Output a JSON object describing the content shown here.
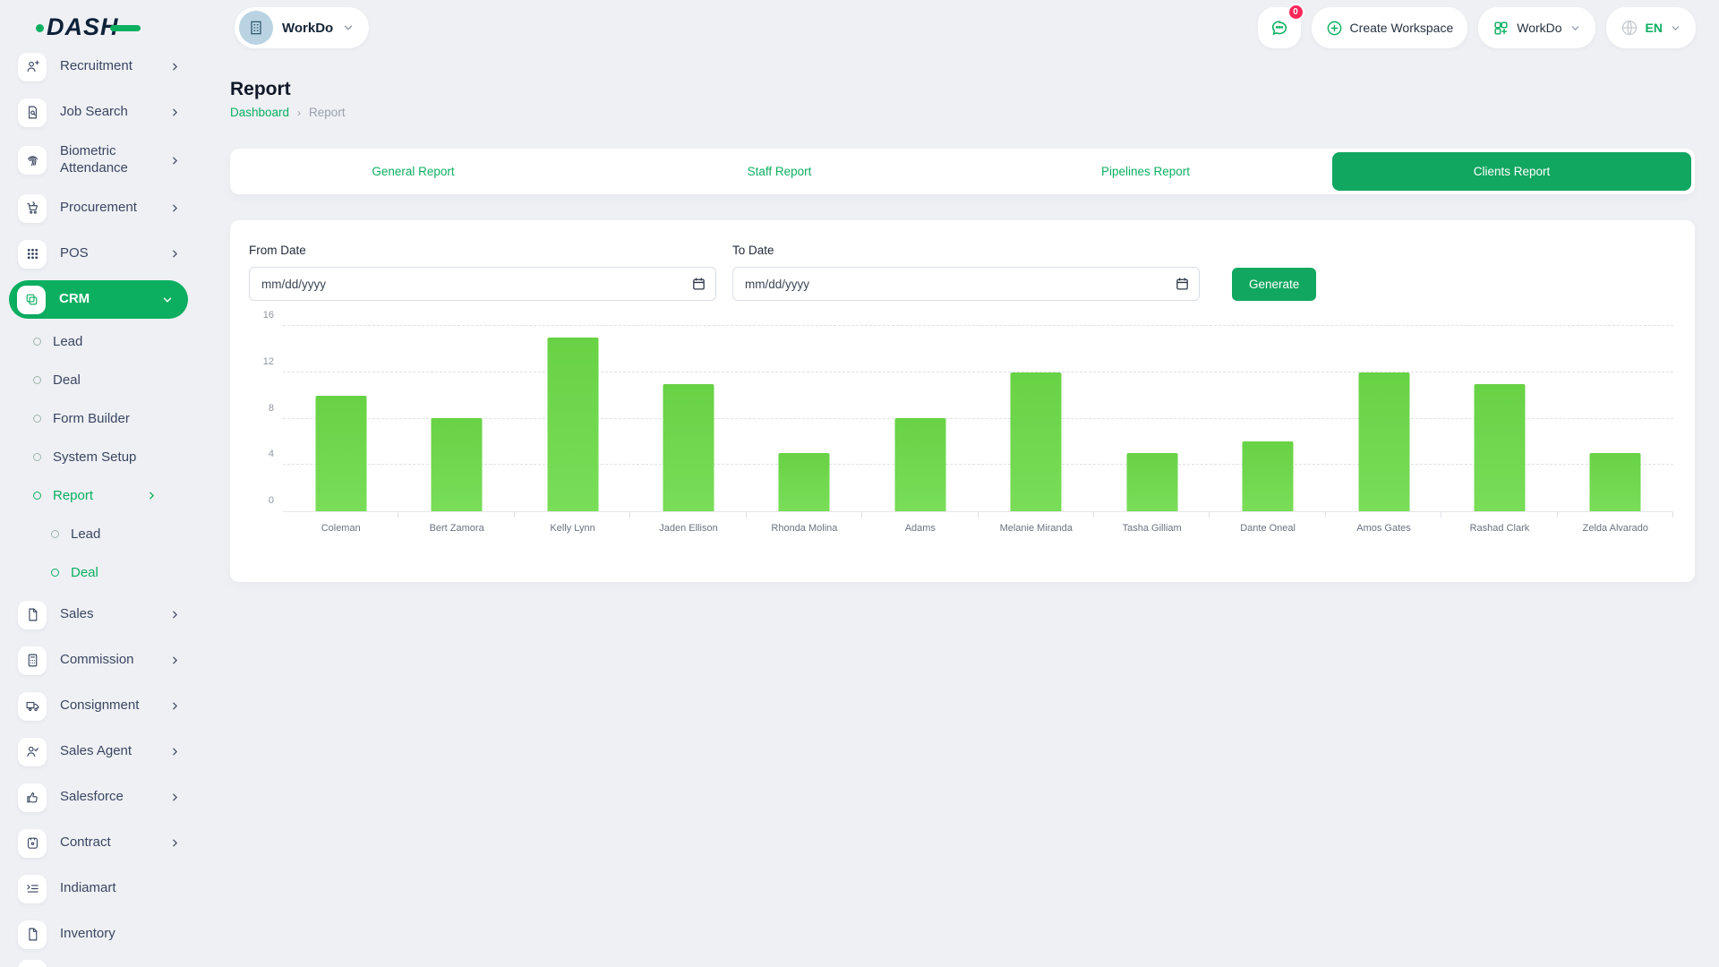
{
  "colors": {
    "accent_green": "#0caf60",
    "tab_active_green": "#12a760",
    "bar_green": "#6fd943",
    "badge_pink": "#fc275a",
    "avatar_blue": "#b9d3e2"
  },
  "header": {
    "logo_text": "DASH",
    "workspace_name": "WorkDo",
    "messages_badge": "0",
    "create_workspace_label": "Create Workspace",
    "workspace_switcher_label": "WorkDo",
    "language_label": "EN"
  },
  "sidebar": {
    "items": [
      {
        "label": "Recruitment",
        "icon": "user-plus",
        "chevron": true
      },
      {
        "label": "Job Search",
        "icon": "doc-search",
        "chevron": true
      },
      {
        "label": "Biometric Attendance",
        "icon": "fingerprint",
        "chevron": true,
        "tall": true
      },
      {
        "label": "Procurement",
        "icon": "cart",
        "chevron": true
      },
      {
        "label": "POS",
        "icon": "grid-dots",
        "chevron": true
      },
      {
        "label": "CRM",
        "icon": "copy",
        "chevron": true,
        "active": true,
        "expanded": true,
        "children": [
          {
            "label": "Lead"
          },
          {
            "label": "Deal"
          },
          {
            "label": "Form Builder"
          },
          {
            "label": "System Setup"
          },
          {
            "label": "Report",
            "green": true,
            "chevron": true,
            "children": [
              {
                "label": "Lead"
              },
              {
                "label": "Deal",
                "green": true
              }
            ]
          }
        ]
      },
      {
        "label": "Sales",
        "icon": "doc",
        "chevron": true
      },
      {
        "label": "Commission",
        "icon": "calculator",
        "chevron": true
      },
      {
        "label": "Consignment",
        "icon": "truck",
        "chevron": true
      },
      {
        "label": "Sales Agent",
        "icon": "user-check",
        "chevron": true
      },
      {
        "label": "Salesforce",
        "icon": "thumb",
        "chevron": true
      },
      {
        "label": "Contract",
        "icon": "doc-badge",
        "chevron": true
      },
      {
        "label": "Indiamart",
        "icon": "list-arrow",
        "chevron": false
      },
      {
        "label": "Inventory",
        "icon": "doc",
        "chevron": false
      }
    ]
  },
  "page": {
    "title": "Report",
    "breadcrumb": [
      "Dashboard",
      "Report"
    ]
  },
  "tabs": [
    {
      "label": "General Report",
      "active": false
    },
    {
      "label": "Staff Report",
      "active": false
    },
    {
      "label": "Pipelines Report",
      "active": false
    },
    {
      "label": "Clients Report",
      "active": true
    }
  ],
  "filters": {
    "from_label": "From Date",
    "to_label": "To Date",
    "date_placeholder": "mm/dd/yyyy",
    "from_value": "",
    "to_value": "",
    "generate_label": "Generate"
  },
  "chart_data": {
    "type": "bar",
    "title": "",
    "xlabel": "",
    "ylabel": "",
    "categories": [
      "Coleman",
      "Bert Zamora",
      "Kelly Lynn",
      "Jaden Ellison",
      "Rhonda Molina",
      "Adams",
      "Melanie Miranda",
      "Tasha Gilliam",
      "Dante Oneal",
      "Amos Gates",
      "Rashad Clark",
      "Zelda Alvarado"
    ],
    "values": [
      10,
      8,
      15,
      11,
      5,
      8,
      12,
      5,
      6,
      12,
      11,
      5
    ],
    "ylim": [
      0,
      16
    ],
    "yticks": [
      0,
      4,
      8,
      12,
      16
    ],
    "grid": "dashed-horizontal",
    "legend": "none",
    "bar_color": "#6fd943"
  }
}
